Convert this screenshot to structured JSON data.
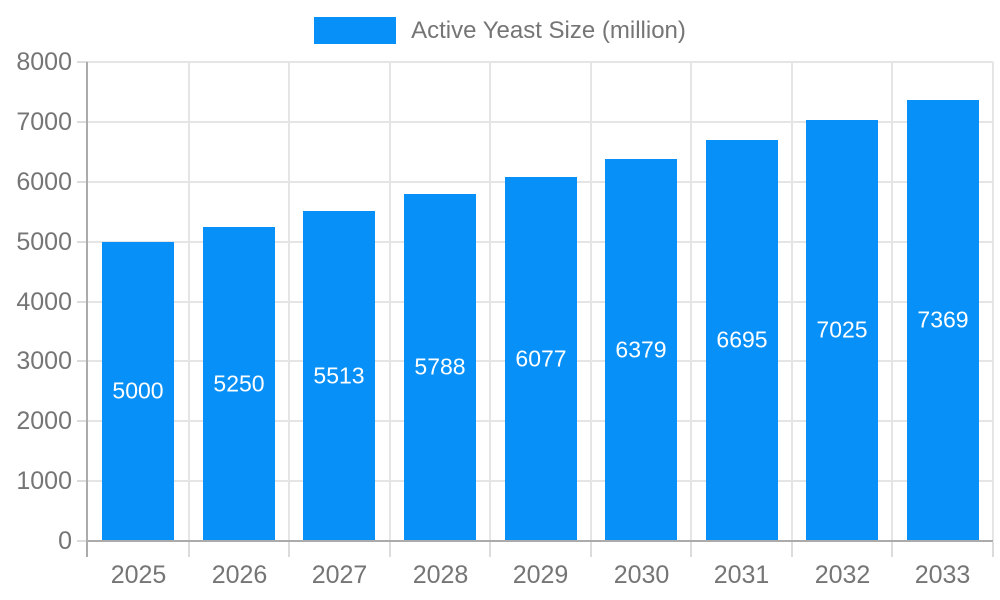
{
  "colors": {
    "bar": "#0890F9",
    "bar_label": "#FFFFFF",
    "axis_text": "#757575",
    "grid_line": "#E5E5E5",
    "axis_line": "#ABABAB",
    "tick_line": "#DCDCDC",
    "background": "#FFFFFF"
  },
  "legend": {
    "label": "Active Yeast Size (million)"
  },
  "chart_data": {
    "type": "bar",
    "title": "Active Yeast Size (million)",
    "series": [
      {
        "name": "Active Yeast Size (million)",
        "values": [
          5000,
          5250,
          5513,
          5788,
          6077,
          6379,
          6695,
          7025,
          7369
        ]
      }
    ],
    "categories": [
      "2025",
      "2026",
      "2027",
      "2028",
      "2029",
      "2030",
      "2031",
      "2032",
      "2033"
    ],
    "values": [
      5000,
      5250,
      5513,
      5788,
      6077,
      6379,
      6695,
      7025,
      7369
    ],
    "bar_labels": [
      "5000",
      "5250",
      "5513",
      "5788",
      "6077",
      "6379",
      "6695",
      "7025",
      "7369"
    ],
    "xlabel": "",
    "ylabel": "",
    "ylim": [
      0,
      8000
    ],
    "ytick_step": 1000,
    "ytick_labels": [
      "0",
      "1000",
      "2000",
      "3000",
      "4000",
      "5000",
      "6000",
      "7000",
      "8000"
    ],
    "grid": true,
    "legend_position": "top",
    "bar_labels_visible": true
  }
}
